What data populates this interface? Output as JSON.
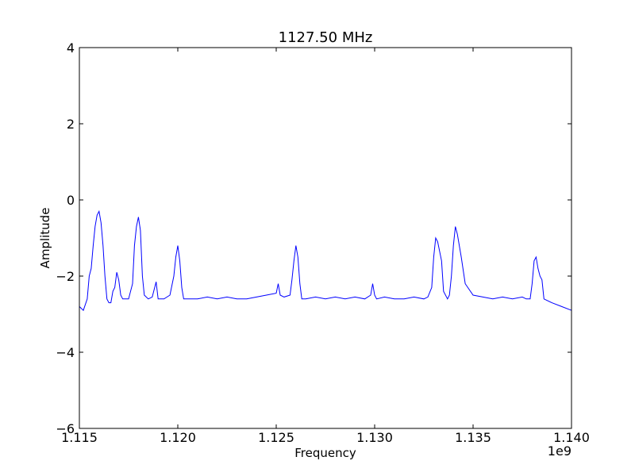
{
  "chart_data": {
    "type": "line",
    "title": "1127.50 MHz",
    "xlabel": "Frequency",
    "ylabel": "Amplitude",
    "x_offset_label": "1e9",
    "xlim": [
      1.115,
      1.14
    ],
    "ylim": [
      -6,
      4
    ],
    "x_ticks": [
      {
        "value": 1.115,
        "label": "1.115"
      },
      {
        "value": 1.12,
        "label": "1.120"
      },
      {
        "value": 1.125,
        "label": "1.125"
      },
      {
        "value": 1.13,
        "label": "1.130"
      },
      {
        "value": 1.135,
        "label": "1.135"
      },
      {
        "value": 1.14,
        "label": "1.140"
      }
    ],
    "y_ticks": [
      {
        "value": 4,
        "label": "4"
      },
      {
        "value": 2,
        "label": "2"
      },
      {
        "value": 0,
        "label": "0"
      },
      {
        "value": -2,
        "label": "−2"
      },
      {
        "value": -4,
        "label": "−4"
      },
      {
        "value": -6,
        "label": "−6"
      }
    ],
    "grid": false,
    "series": [
      {
        "color": "#0000ff",
        "x": [
          1.115,
          1.1152,
          1.1154,
          1.1155,
          1.1156,
          1.1157,
          1.1158,
          1.1159,
          1.116,
          1.1161,
          1.1162,
          1.1163,
          1.1164,
          1.1165,
          1.1166,
          1.1167,
          1.1168,
          1.1169,
          1.117,
          1.1171,
          1.1172,
          1.1173,
          1.1175,
          1.1177,
          1.1178,
          1.1179,
          1.118,
          1.1181,
          1.1182,
          1.1183,
          1.1185,
          1.1187,
          1.1189,
          1.119,
          1.1191,
          1.1193,
          1.1196,
          1.1198,
          1.1199,
          1.12,
          1.1201,
          1.1202,
          1.1203,
          1.1205,
          1.121,
          1.1215,
          1.122,
          1.1225,
          1.123,
          1.1235,
          1.124,
          1.1245,
          1.125,
          1.1251,
          1.1252,
          1.1254,
          1.1257,
          1.1258,
          1.1259,
          1.126,
          1.1261,
          1.1262,
          1.1263,
          1.1265,
          1.127,
          1.1275,
          1.128,
          1.1285,
          1.129,
          1.1295,
          1.1298,
          1.1299,
          1.13,
          1.1301,
          1.1305,
          1.131,
          1.1315,
          1.132,
          1.1325,
          1.1327,
          1.1329,
          1.133,
          1.1331,
          1.1332,
          1.1334,
          1.1335,
          1.1337,
          1.1338,
          1.1339,
          1.134,
          1.1341,
          1.1342,
          1.1344,
          1.1346,
          1.135,
          1.1355,
          1.136,
          1.1365,
          1.137,
          1.1375,
          1.1377,
          1.1379,
          1.138,
          1.1381,
          1.1382,
          1.1383,
          1.1384,
          1.1385,
          1.1386,
          1.139,
          1.1395,
          1.14
        ],
        "y": [
          -2.8,
          -2.9,
          -2.6,
          -2.0,
          -1.8,
          -1.2,
          -0.7,
          -0.4,
          -0.3,
          -0.6,
          -1.2,
          -2.0,
          -2.6,
          -2.7,
          -2.7,
          -2.4,
          -2.3,
          -1.9,
          -2.1,
          -2.5,
          -2.6,
          -2.6,
          -2.6,
          -2.2,
          -1.2,
          -0.7,
          -0.45,
          -0.8,
          -2.0,
          -2.5,
          -2.6,
          -2.55,
          -2.15,
          -2.6,
          -2.6,
          -2.6,
          -2.5,
          -2.0,
          -1.5,
          -1.2,
          -1.6,
          -2.3,
          -2.6,
          -2.6,
          -2.6,
          -2.55,
          -2.6,
          -2.55,
          -2.6,
          -2.6,
          -2.55,
          -2.5,
          -2.45,
          -2.2,
          -2.5,
          -2.55,
          -2.5,
          -2.1,
          -1.6,
          -1.2,
          -1.5,
          -2.2,
          -2.6,
          -2.6,
          -2.55,
          -2.6,
          -2.55,
          -2.6,
          -2.55,
          -2.6,
          -2.5,
          -2.2,
          -2.5,
          -2.6,
          -2.55,
          -2.6,
          -2.6,
          -2.55,
          -2.6,
          -2.55,
          -2.3,
          -1.5,
          -1.0,
          -1.1,
          -1.6,
          -2.4,
          -2.6,
          -2.5,
          -2.0,
          -1.2,
          -0.7,
          -0.9,
          -1.5,
          -2.2,
          -2.5,
          -2.55,
          -2.6,
          -2.55,
          -2.6,
          -2.55,
          -2.6,
          -2.6,
          -2.2,
          -1.6,
          -1.5,
          -1.8,
          -2.0,
          -2.1,
          -2.6,
          -2.7,
          -2.8,
          -2.9
        ]
      }
    ]
  }
}
